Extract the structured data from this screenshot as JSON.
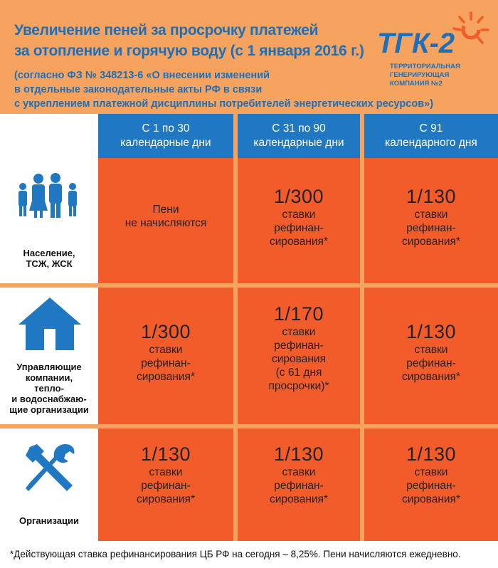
{
  "header": {
    "title_line1": "Увеличение пеней за просрочку платежей",
    "title_line2": "за отопление и горячую воду (с 1 января 2016 г.)",
    "subtitle_line1": "(согласно ФЗ № 348213-6 «О внесении изменений",
    "subtitle_line2": "в отдельные законодательные акты РФ в связи",
    "subtitle_line3": "с укреплением платежной дисциплины потребителей энергетических ресурсов»)"
  },
  "logo": {
    "mark": "ТГК-2",
    "caption_line1": "ТЕРРИТОРИАЛЬНАЯ",
    "caption_line2": "ГЕНЕРИРУЮЩАЯ",
    "caption_line3": "КОМПАНИЯ №2",
    "accent": "#f25c2a",
    "brand": "#1d6fb8"
  },
  "columns": [
    {
      "line1": "С 1 по 30",
      "line2": "календарные дни"
    },
    {
      "line1": "С 31 по 90",
      "line2": "календарные дни"
    },
    {
      "line1": "С 91",
      "line2": "календарного дня"
    }
  ],
  "categories": [
    {
      "icon": "family-icon",
      "line1": "Население,",
      "line2": "ТСЖ, ЖСК"
    },
    {
      "icon": "house-icon",
      "line1": "Управляющие",
      "line2": "компании,",
      "line3": "тепло-",
      "line4": "и водоснабжаю-",
      "line5": "щие организации"
    },
    {
      "icon": "tools-icon",
      "line1": "Организации"
    }
  ],
  "cells": {
    "r1c1": {
      "line1": "Пени",
      "line2": "не начисляются"
    },
    "r1c2": {
      "big": "1/300",
      "l1": "ставки",
      "l2": "рефинан-",
      "l3": "сирования*"
    },
    "r1c3": {
      "big": "1/130",
      "l1": "ставки",
      "l2": "рефинан-",
      "l3": "сирования*"
    },
    "r2c1": {
      "big": "1/300",
      "l1": "ставки",
      "l2": "рефинан-",
      "l3": "сирования*"
    },
    "r2c2": {
      "big": "1/170",
      "l1": "ставки",
      "l2": "рефинан-",
      "l3": "сирования",
      "l4": "(с 61 дня",
      "l5": "просрочки)*"
    },
    "r2c3": {
      "big": "1/130",
      "l1": "ставки",
      "l2": "рефинан-",
      "l3": "сирования*"
    },
    "r3c1": {
      "big": "1/130",
      "l1": "ставки",
      "l2": "рефинан-",
      "l3": "сирования*"
    },
    "r3c2": {
      "big": "1/130",
      "l1": "ставки",
      "l2": "рефинан-",
      "l3": "сирования*"
    },
    "r3c3": {
      "big": "1/130",
      "l1": "ставки",
      "l2": "рефинан-",
      "l3": "сирования*"
    }
  },
  "footer": {
    "note": "*Действующая ставка рефинансирования ЦБ РФ на сегодня – 8,25%. Пени начисляются ежедневно."
  },
  "colors": {
    "blue": "#1f78c1",
    "orange": "#f25c2a",
    "background": "#f6a35f"
  }
}
